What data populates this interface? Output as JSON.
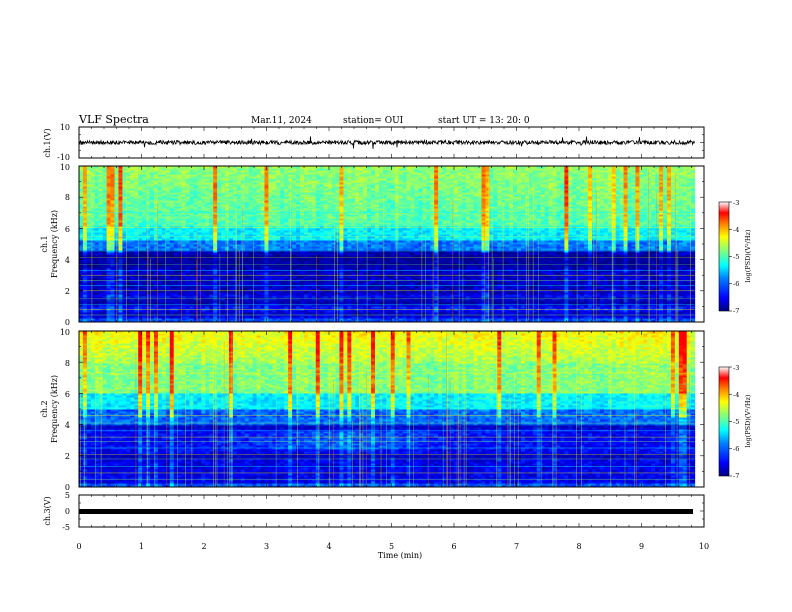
{
  "header": {
    "title": "VLF Spectra",
    "date": "Mar.11, 2024",
    "station": "station= OUI",
    "start": "start  UT  =   13: 20: 0"
  },
  "chart_data": [
    {
      "type": "line",
      "panel": "ch1-waveform",
      "ylabel": "ch.1(V)",
      "ylim": [
        -10,
        10
      ],
      "yticks": [
        "10",
        "-10"
      ],
      "baseline": 0,
      "note_values": "noisy waveform roughly within -3..+3 V"
    },
    {
      "type": "heatmap",
      "panel": "ch1-spectrogram",
      "ylabel": "ch.1\nFrequency (kHz)",
      "ylabel_line1": "ch.1",
      "ylabel_line2": "Frequency (kHz)",
      "ylim": [
        0,
        10
      ],
      "yticks": [
        "0",
        "2",
        "4",
        "6",
        "8",
        "10"
      ],
      "xlim": [
        0,
        10
      ],
      "data_extent_x": [
        0,
        9.85
      ],
      "colorbar": {
        "label": "log(PSD)(V²/Hz)",
        "range": [
          -7,
          -3
        ],
        "ticks": [
          "-3",
          "-4",
          "-5",
          "-6",
          "-7"
        ]
      }
    },
    {
      "type": "heatmap",
      "panel": "ch2-spectrogram",
      "ylabel_line1": "ch.2",
      "ylabel_line2": "Frequency (kHz)",
      "ylim": [
        0,
        10
      ],
      "yticks": [
        "0",
        "2",
        "4",
        "6",
        "8",
        "10"
      ],
      "xlim": [
        0,
        10
      ],
      "data_extent_x": [
        0,
        9.85
      ],
      "colorbar": {
        "label": "log(PSD)(V²/Hz)",
        "range": [
          -7,
          -3
        ],
        "ticks": [
          "-3",
          "-4",
          "-5",
          "-6",
          "-7"
        ]
      }
    },
    {
      "type": "line",
      "panel": "ch3-waveform",
      "ylabel": "ch.3(V)",
      "ylim": [
        -5,
        5
      ],
      "yticks": [
        "5",
        "0",
        "-5"
      ],
      "baseline": -0.6,
      "xlabel": "Time  (min)",
      "xlim": [
        0,
        10
      ],
      "xticks": [
        "0",
        "1",
        "2",
        "3",
        "4",
        "5",
        "6",
        "7",
        "8",
        "9",
        "10"
      ]
    }
  ],
  "colors": {
    "colormap": [
      "#00007f",
      "#0000ff",
      "#0080ff",
      "#00ffff",
      "#80ff80",
      "#ffff00",
      "#ff8000",
      "#ff0000",
      "#ffffff"
    ],
    "frame": "#000000"
  }
}
